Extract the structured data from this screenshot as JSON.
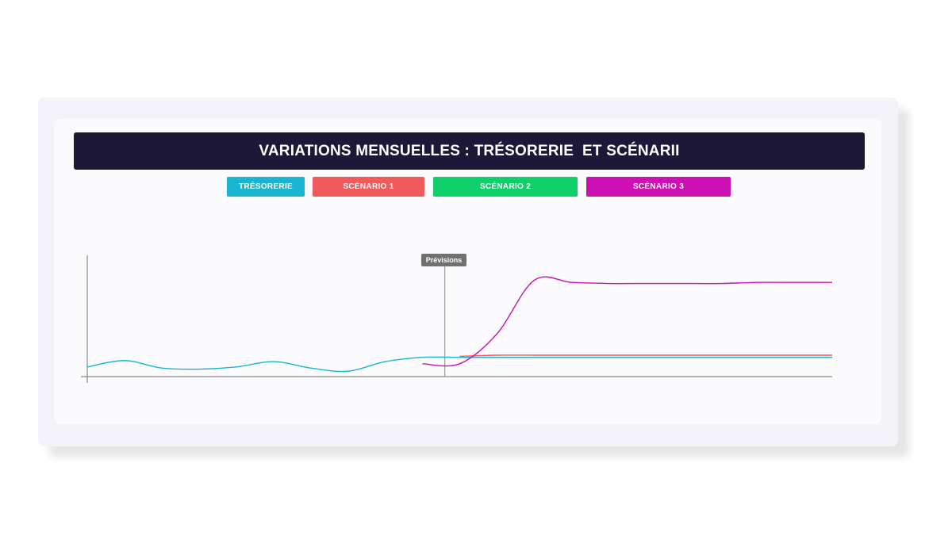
{
  "title": "VARIATIONS MENSUELLES : TRÉSORERIE  ET SCÉNARII",
  "legend": [
    {
      "label": "TRÉSORERIE",
      "color": "#1ab4d3"
    },
    {
      "label": "SCÉNARIO 1",
      "color": "#f05a5a"
    },
    {
      "label": "SCÉNARIO 2",
      "color": "#0ed06a"
    },
    {
      "label": "SCÉNARIO 3",
      "color": "#cc10b4"
    }
  ],
  "forecast_label": "Prévisions",
  "chart_data": {
    "type": "line",
    "title": "VARIATIONS MENSUELLES : TRÉSORERIE  ET SCÉNARII",
    "xlabel": "",
    "ylabel": "",
    "x": [
      0,
      5,
      10,
      15,
      20,
      25,
      30,
      35,
      40,
      45,
      50,
      55,
      60,
      65,
      70,
      75,
      80,
      85,
      90,
      95,
      100
    ],
    "ylim": [
      0,
      100
    ],
    "forecast_start_x": 48,
    "grid": false,
    "legend_position": "top",
    "series": [
      {
        "name": "TRÉSORERIE",
        "color": "#1ab4d3",
        "values": [
          9,
          15,
          8,
          7,
          9,
          14,
          8,
          5,
          14,
          18,
          18,
          18,
          18,
          18,
          18,
          18,
          18,
          18,
          18,
          18,
          18
        ]
      },
      {
        "name": "SCÉNARIO 1",
        "color": "#f05a5a",
        "values": [
          null,
          null,
          null,
          null,
          null,
          null,
          null,
          null,
          null,
          null,
          19,
          20,
          20,
          20,
          20,
          20,
          20,
          20,
          20,
          20,
          20
        ]
      },
      {
        "name": "SCÉNARIO 2",
        "color": "#0ed06a",
        "values": [
          null,
          null,
          null,
          null,
          null,
          null,
          null,
          null,
          null,
          null,
          18,
          18,
          18,
          18,
          18,
          18,
          18,
          18,
          18,
          18,
          18
        ]
      },
      {
        "name": "SCÉNARIO 3",
        "color": "#cc10b4",
        "values": [
          null,
          null,
          null,
          null,
          null,
          null,
          null,
          null,
          null,
          12,
          12,
          40,
          90,
          88,
          87,
          87,
          87,
          87,
          88,
          88,
          88
        ]
      }
    ]
  }
}
